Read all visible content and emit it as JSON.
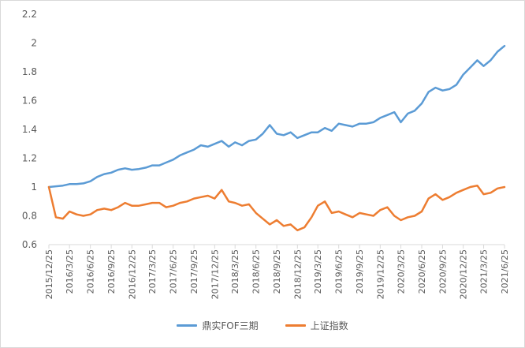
{
  "chart_data": {
    "type": "line",
    "title": "",
    "xlabel": "",
    "ylabel": "",
    "ylim": [
      0.6,
      2.2
    ],
    "yticks": [
      0.6,
      0.8,
      1,
      1.2,
      1.4,
      1.6,
      1.8,
      2,
      2.2
    ],
    "ytick_labels": [
      "0.6",
      "0.8",
      "1",
      "1.2",
      "1.4",
      "1.6",
      "1.8",
      "2",
      "2.2"
    ],
    "xlim": [
      "2015/12/25",
      "2021/6/25"
    ],
    "xtick_labels": [
      "2015/12/25",
      "2016/3/25",
      "2016/6/25",
      "2016/9/25",
      "2016/12/25",
      "2017/3/25",
      "2017/6/25",
      "2017/9/25",
      "2017/12/25",
      "2018/3/25",
      "2018/6/25",
      "2018/9/25",
      "2018/12/25",
      "2019/3/25",
      "2019/6/25",
      "2019/9/25",
      "2019/12/25",
      "2020/3/25",
      "2020/6/25",
      "2020/9/25",
      "2020/12/25",
      "2021/3/25",
      "2021/6/25"
    ],
    "grid": false,
    "legend_position": "bottom",
    "series": [
      {
        "name": "鼎实FOF三期",
        "color": "#5b9bd5",
        "points": [
          [
            "2015/12/25",
            1.0
          ],
          [
            "2016/1/25",
            1.005
          ],
          [
            "2016/2/25",
            1.01
          ],
          [
            "2016/3/25",
            1.02
          ],
          [
            "2016/4/25",
            1.02
          ],
          [
            "2016/5/25",
            1.025
          ],
          [
            "2016/6/25",
            1.04
          ],
          [
            "2016/7/25",
            1.07
          ],
          [
            "2016/8/25",
            1.09
          ],
          [
            "2016/9/25",
            1.1
          ],
          [
            "2016/10/25",
            1.12
          ],
          [
            "2016/11/25",
            1.13
          ],
          [
            "2016/12/25",
            1.12
          ],
          [
            "2017/1/25",
            1.125
          ],
          [
            "2017/2/25",
            1.135
          ],
          [
            "2017/3/25",
            1.15
          ],
          [
            "2017/4/25",
            1.15
          ],
          [
            "2017/5/25",
            1.17
          ],
          [
            "2017/6/25",
            1.19
          ],
          [
            "2017/7/25",
            1.22
          ],
          [
            "2017/8/25",
            1.24
          ],
          [
            "2017/9/25",
            1.26
          ],
          [
            "2017/10/25",
            1.29
          ],
          [
            "2017/11/25",
            1.28
          ],
          [
            "2017/12/25",
            1.3
          ],
          [
            "2018/1/25",
            1.32
          ],
          [
            "2018/2/25",
            1.28
          ],
          [
            "2018/3/25",
            1.31
          ],
          [
            "2018/4/25",
            1.29
          ],
          [
            "2018/5/25",
            1.32
          ],
          [
            "2018/6/25",
            1.33
          ],
          [
            "2018/7/25",
            1.37
          ],
          [
            "2018/8/25",
            1.43
          ],
          [
            "2018/9/25",
            1.37
          ],
          [
            "2018/10/25",
            1.36
          ],
          [
            "2018/11/25",
            1.38
          ],
          [
            "2018/12/25",
            1.34
          ],
          [
            "2019/1/25",
            1.36
          ],
          [
            "2019/2/25",
            1.38
          ],
          [
            "2019/3/25",
            1.38
          ],
          [
            "2019/4/25",
            1.41
          ],
          [
            "2019/5/25",
            1.39
          ],
          [
            "2019/6/25",
            1.44
          ],
          [
            "2019/7/25",
            1.43
          ],
          [
            "2019/8/25",
            1.42
          ],
          [
            "2019/9/25",
            1.44
          ],
          [
            "2019/10/25",
            1.44
          ],
          [
            "2019/11/25",
            1.45
          ],
          [
            "2019/12/25",
            1.48
          ],
          [
            "2020/1/25",
            1.5
          ],
          [
            "2020/2/25",
            1.52
          ],
          [
            "2020/3/25",
            1.45
          ],
          [
            "2020/4/25",
            1.51
          ],
          [
            "2020/5/25",
            1.53
          ],
          [
            "2020/6/25",
            1.58
          ],
          [
            "2020/7/25",
            1.66
          ],
          [
            "2020/8/25",
            1.69
          ],
          [
            "2020/9/25",
            1.67
          ],
          [
            "2020/10/25",
            1.68
          ],
          [
            "2020/11/25",
            1.71
          ],
          [
            "2020/12/25",
            1.78
          ],
          [
            "2021/1/25",
            1.83
          ],
          [
            "2021/2/25",
            1.88
          ],
          [
            "2021/3/25",
            1.84
          ],
          [
            "2021/4/25",
            1.88
          ],
          [
            "2021/5/25",
            1.94
          ],
          [
            "2021/6/25",
            1.98
          ]
        ]
      },
      {
        "name": "上证指数",
        "color": "#ed7d31",
        "points": [
          [
            "2015/12/25",
            1.0
          ],
          [
            "2016/1/25",
            0.79
          ],
          [
            "2016/2/25",
            0.78
          ],
          [
            "2016/3/25",
            0.83
          ],
          [
            "2016/4/25",
            0.81
          ],
          [
            "2016/5/25",
            0.8
          ],
          [
            "2016/6/25",
            0.81
          ],
          [
            "2016/7/25",
            0.84
          ],
          [
            "2016/8/25",
            0.85
          ],
          [
            "2016/9/25",
            0.84
          ],
          [
            "2016/10/25",
            0.86
          ],
          [
            "2016/11/25",
            0.89
          ],
          [
            "2016/12/25",
            0.87
          ],
          [
            "2017/1/25",
            0.87
          ],
          [
            "2017/2/25",
            0.88
          ],
          [
            "2017/3/25",
            0.89
          ],
          [
            "2017/4/25",
            0.89
          ],
          [
            "2017/5/25",
            0.86
          ],
          [
            "2017/6/25",
            0.87
          ],
          [
            "2017/7/25",
            0.89
          ],
          [
            "2017/8/25",
            0.9
          ],
          [
            "2017/9/25",
            0.92
          ],
          [
            "2017/10/25",
            0.93
          ],
          [
            "2017/11/25",
            0.94
          ],
          [
            "2017/12/25",
            0.92
          ],
          [
            "2018/1/25",
            0.98
          ],
          [
            "2018/2/25",
            0.9
          ],
          [
            "2018/3/25",
            0.89
          ],
          [
            "2018/4/25",
            0.87
          ],
          [
            "2018/5/25",
            0.88
          ],
          [
            "2018/6/25",
            0.82
          ],
          [
            "2018/7/25",
            0.78
          ],
          [
            "2018/8/25",
            0.74
          ],
          [
            "2018/9/25",
            0.77
          ],
          [
            "2018/10/25",
            0.73
          ],
          [
            "2018/11/25",
            0.74
          ],
          [
            "2018/12/25",
            0.7
          ],
          [
            "2019/1/25",
            0.72
          ],
          [
            "2019/2/25",
            0.79
          ],
          [
            "2019/3/25",
            0.87
          ],
          [
            "2019/4/25",
            0.9
          ],
          [
            "2019/5/25",
            0.82
          ],
          [
            "2019/6/25",
            0.83
          ],
          [
            "2019/7/25",
            0.81
          ],
          [
            "2019/8/25",
            0.79
          ],
          [
            "2019/9/25",
            0.82
          ],
          [
            "2019/10/25",
            0.81
          ],
          [
            "2019/11/25",
            0.8
          ],
          [
            "2019/12/25",
            0.84
          ],
          [
            "2020/1/25",
            0.86
          ],
          [
            "2020/2/25",
            0.8
          ],
          [
            "2020/3/25",
            0.77
          ],
          [
            "2020/4/25",
            0.79
          ],
          [
            "2020/5/25",
            0.8
          ],
          [
            "2020/6/25",
            0.83
          ],
          [
            "2020/7/25",
            0.92
          ],
          [
            "2020/8/25",
            0.95
          ],
          [
            "2020/9/25",
            0.91
          ],
          [
            "2020/10/25",
            0.93
          ],
          [
            "2020/11/25",
            0.96
          ],
          [
            "2020/12/25",
            0.98
          ],
          [
            "2021/1/25",
            1.0
          ],
          [
            "2021/2/25",
            1.01
          ],
          [
            "2021/3/25",
            0.95
          ],
          [
            "2021/4/25",
            0.96
          ],
          [
            "2021/5/25",
            0.99
          ],
          [
            "2021/6/25",
            1.0
          ]
        ]
      }
    ]
  }
}
